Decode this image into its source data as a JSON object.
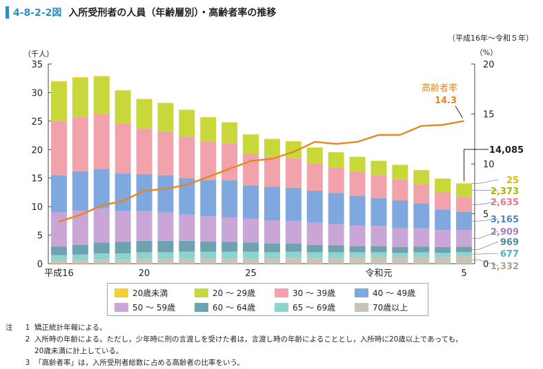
{
  "header": {
    "figure_number": "4-8-2-2図",
    "title": "入所受刑者の人員（年齢層別）・高齢者率の推移",
    "period": "（平成16年～令和５年）"
  },
  "chart_data": {
    "type": "bar",
    "stacked": true,
    "categories": [
      "平成16",
      "17",
      "18",
      "19",
      "20",
      "21",
      "22",
      "23",
      "24",
      "25",
      "26",
      "27",
      "28",
      "29",
      "30",
      "令和元",
      "2",
      "3",
      "4",
      "5"
    ],
    "x_tick_labels": {
      "0": "平成16",
      "4": "20",
      "9": "25",
      "15": "令和元",
      "19": "5"
    },
    "left_axis": {
      "unit": "（千人）",
      "ylim": [
        0,
        35
      ],
      "ticks": [
        0,
        5,
        10,
        15,
        20,
        25,
        30,
        35
      ]
    },
    "right_axis": {
      "unit": "（%）",
      "ylim": [
        0,
        20
      ],
      "ticks": [
        0,
        5,
        10,
        15,
        20
      ]
    },
    "series": [
      {
        "name": "70歳以上",
        "color": "#c8c4b6",
        "values": [
          0.6,
          0.6,
          0.7,
          0.7,
          0.8,
          0.8,
          0.8,
          0.9,
          0.9,
          0.9,
          0.9,
          1.0,
          1.0,
          1.0,
          1.1,
          1.1,
          1.1,
          1.2,
          1.2,
          1.332
        ]
      },
      {
        "name": "65～69歳",
        "color": "#8fd3cf",
        "values": [
          0.9,
          1.0,
          1.1,
          1.1,
          1.2,
          1.2,
          1.3,
          1.2,
          1.2,
          1.2,
          1.1,
          1.1,
          1.0,
          1.0,
          0.9,
          0.9,
          0.8,
          0.8,
          0.7,
          0.677
        ]
      },
      {
        "name": "60～64歳",
        "color": "#6ea2b0",
        "values": [
          1.5,
          1.7,
          1.9,
          2.0,
          2.0,
          2.0,
          1.9,
          1.8,
          1.7,
          1.6,
          1.5,
          1.4,
          1.3,
          1.2,
          1.1,
          1.1,
          1.0,
          1.0,
          1.0,
          0.969
        ]
      },
      {
        "name": "50～59歳",
        "color": "#c9a6d6",
        "values": [
          6.0,
          6.0,
          6.0,
          5.4,
          5.2,
          5.0,
          4.6,
          4.4,
          4.3,
          4.2,
          4.1,
          4.0,
          3.9,
          3.7,
          3.6,
          3.5,
          3.3,
          3.2,
          3.0,
          2.909
        ]
      },
      {
        "name": "40～49歳",
        "color": "#7fa8de",
        "values": [
          6.5,
          6.9,
          6.9,
          6.6,
          6.5,
          6.5,
          6.4,
          6.4,
          6.5,
          5.8,
          5.9,
          5.8,
          5.6,
          5.5,
          5.2,
          4.9,
          4.9,
          4.4,
          3.6,
          3.165
        ]
      },
      {
        "name": "30～39歳",
        "color": "#f2a2aa",
        "values": [
          9.5,
          9.6,
          9.6,
          8.8,
          8.0,
          7.7,
          7.3,
          6.8,
          6.5,
          5.6,
          5.3,
          5.2,
          4.7,
          4.4,
          4.2,
          4.0,
          3.7,
          3.3,
          3.0,
          2.635
        ]
      },
      {
        "name": "20～29歳",
        "color": "#c8d83a",
        "values": [
          6.8,
          6.7,
          6.5,
          5.7,
          5.1,
          4.9,
          4.6,
          4.1,
          3.6,
          3.3,
          3.0,
          2.9,
          2.8,
          2.7,
          2.6,
          2.5,
          2.5,
          2.5,
          2.4,
          2.373
        ]
      },
      {
        "name": "20歳未満",
        "color": "#f3cf33",
        "values": [
          0.2,
          0.2,
          0.2,
          0.1,
          0.1,
          0.1,
          0.1,
          0.1,
          0.1,
          0.1,
          0.1,
          0.1,
          0.1,
          0.05,
          0.05,
          0.05,
          0.04,
          0.03,
          0.03,
          0.025
        ]
      }
    ],
    "line": {
      "name": "高齢者率",
      "color": "#e9851d",
      "values": [
        4.2,
        4.9,
        5.8,
        6.3,
        7.3,
        7.5,
        7.9,
        8.7,
        9.5,
        10.3,
        10.5,
        11.2,
        12.2,
        12.0,
        12.2,
        12.9,
        12.9,
        13.8,
        13.9,
        14.3
      ]
    },
    "annotations": {
      "rate_label": "高齢者率",
      "rate_value": "14.3",
      "total_label": "14,085",
      "series_end_labels": [
        {
          "text": "25",
          "color": "#e3b800"
        },
        {
          "text": "2,373",
          "color": "#a7b500"
        },
        {
          "text": "2,635",
          "color": "#e07a86"
        },
        {
          "text": "3,165",
          "color": "#4f84c8"
        },
        {
          "text": "2,909",
          "color": "#a57fb7"
        },
        {
          "text": "969",
          "color": "#4f8797"
        },
        {
          "text": "677",
          "color": "#4fb3ad"
        },
        {
          "text": "1,332",
          "color": "#a7a391"
        }
      ]
    }
  },
  "legend": {
    "items": [
      {
        "label": "20歳未満",
        "color": "#f3cf33"
      },
      {
        "label": "20 ～ 29歳",
        "color": "#c8d83a"
      },
      {
        "label": "30 ～ 39歳",
        "color": "#f2a2aa"
      },
      {
        "label": "40 ～ 49歳",
        "color": "#7fa8de"
      },
      {
        "label": "50 ～ 59歳",
        "color": "#c9a6d6"
      },
      {
        "label": "60 ～ 64歳",
        "color": "#6ea2b0"
      },
      {
        "label": "65 ～ 69歳",
        "color": "#8fd3cf"
      },
      {
        "label": "70歳以上",
        "color": "#c8c4b6"
      }
    ]
  },
  "notes": {
    "label": "注",
    "items": [
      {
        "num": "1",
        "text": "矯正統計年報による。"
      },
      {
        "num": "2",
        "text": "入所時の年齢による。ただし，少年時に刑の言渡しを受けた者は，言渡し時の年齢によることとし，入所時に20歳以上であっても，"
      },
      {
        "num": "",
        "text": "20歳未満に計上している。"
      },
      {
        "num": "3",
        "text": "「高齢者率」は，入所受刑者総数に占める高齢者の比率をいう。"
      }
    ]
  }
}
